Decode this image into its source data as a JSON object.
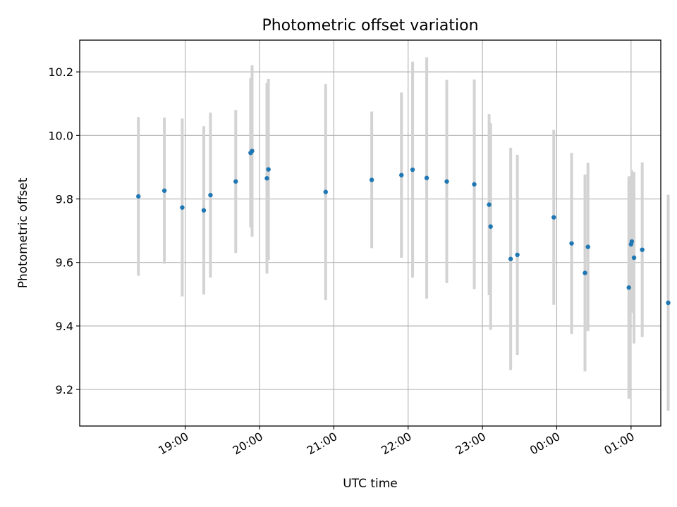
{
  "chart_data": {
    "type": "scatter",
    "title": "Photometric offset variation",
    "xlabel": "UTC time",
    "ylabel": "Photometric offset",
    "x_units": "hours (UTC, continuing past midnight as 24+)",
    "xlim": [
      17.58,
      25.4
    ],
    "ylim": [
      9.085,
      10.3
    ],
    "x_ticks": [
      {
        "value": 19,
        "label": "19:00"
      },
      {
        "value": 20,
        "label": "20:00"
      },
      {
        "value": 21,
        "label": "21:00"
      },
      {
        "value": 22,
        "label": "22:00"
      },
      {
        "value": 23,
        "label": "23:00"
      },
      {
        "value": 24,
        "label": "00:00"
      },
      {
        "value": 25,
        "label": "01:00"
      }
    ],
    "y_ticks": [
      {
        "value": 9.2,
        "label": "9.2"
      },
      {
        "value": 9.4,
        "label": "9.4"
      },
      {
        "value": 9.6,
        "label": "9.6"
      },
      {
        "value": 9.8,
        "label": "9.8"
      },
      {
        "value": 10.0,
        "label": "10.0"
      },
      {
        "value": 10.2,
        "label": "10.2"
      }
    ],
    "grid": true,
    "marker_color": "#1f77b4",
    "errorbar_color": "#d3d3d3",
    "points": [
      {
        "x": 18.37,
        "y": 9.808,
        "err": 0.25
      },
      {
        "x": 18.72,
        "y": 9.826,
        "err": 0.23
      },
      {
        "x": 18.96,
        "y": 9.773,
        "err": 0.28
      },
      {
        "x": 19.25,
        "y": 9.764,
        "err": 0.265
      },
      {
        "x": 19.34,
        "y": 9.812,
        "err": 0.26
      },
      {
        "x": 19.68,
        "y": 9.855,
        "err": 0.225
      },
      {
        "x": 19.88,
        "y": 9.945,
        "err": 0.235
      },
      {
        "x": 19.9,
        "y": 9.951,
        "err": 0.27
      },
      {
        "x": 20.1,
        "y": 9.865,
        "err": 0.3
      },
      {
        "x": 20.12,
        "y": 9.893,
        "err": 0.285
      },
      {
        "x": 20.89,
        "y": 9.822,
        "err": 0.34
      },
      {
        "x": 21.51,
        "y": 9.86,
        "err": 0.215
      },
      {
        "x": 21.91,
        "y": 9.875,
        "err": 0.26
      },
      {
        "x": 22.06,
        "y": 9.892,
        "err": 0.34
      },
      {
        "x": 22.25,
        "y": 9.866,
        "err": 0.38
      },
      {
        "x": 22.52,
        "y": 9.855,
        "err": 0.32
      },
      {
        "x": 22.89,
        "y": 9.846,
        "err": 0.33
      },
      {
        "x": 23.09,
        "y": 9.782,
        "err": 0.285
      },
      {
        "x": 23.11,
        "y": 9.713,
        "err": 0.325
      },
      {
        "x": 23.38,
        "y": 9.611,
        "err": 0.35
      },
      {
        "x": 23.47,
        "y": 9.624,
        "err": 0.315
      },
      {
        "x": 23.96,
        "y": 9.742,
        "err": 0.275
      },
      {
        "x": 24.2,
        "y": 9.66,
        "err": 0.285
      },
      {
        "x": 24.38,
        "y": 9.567,
        "err": 0.31
      },
      {
        "x": 24.42,
        "y": 9.649,
        "err": 0.265
      },
      {
        "x": 24.97,
        "y": 9.521,
        "err": 0.35
      },
      {
        "x": 25.0,
        "y": 9.657,
        "err": 0.215
      },
      {
        "x": 25.01,
        "y": 9.666,
        "err": 0.225
      },
      {
        "x": 25.04,
        "y": 9.615,
        "err": 0.27
      },
      {
        "x": 25.15,
        "y": 9.64,
        "err": 0.275
      },
      {
        "x": 25.5,
        "y": 9.473,
        "err": 0.34
      }
    ]
  }
}
